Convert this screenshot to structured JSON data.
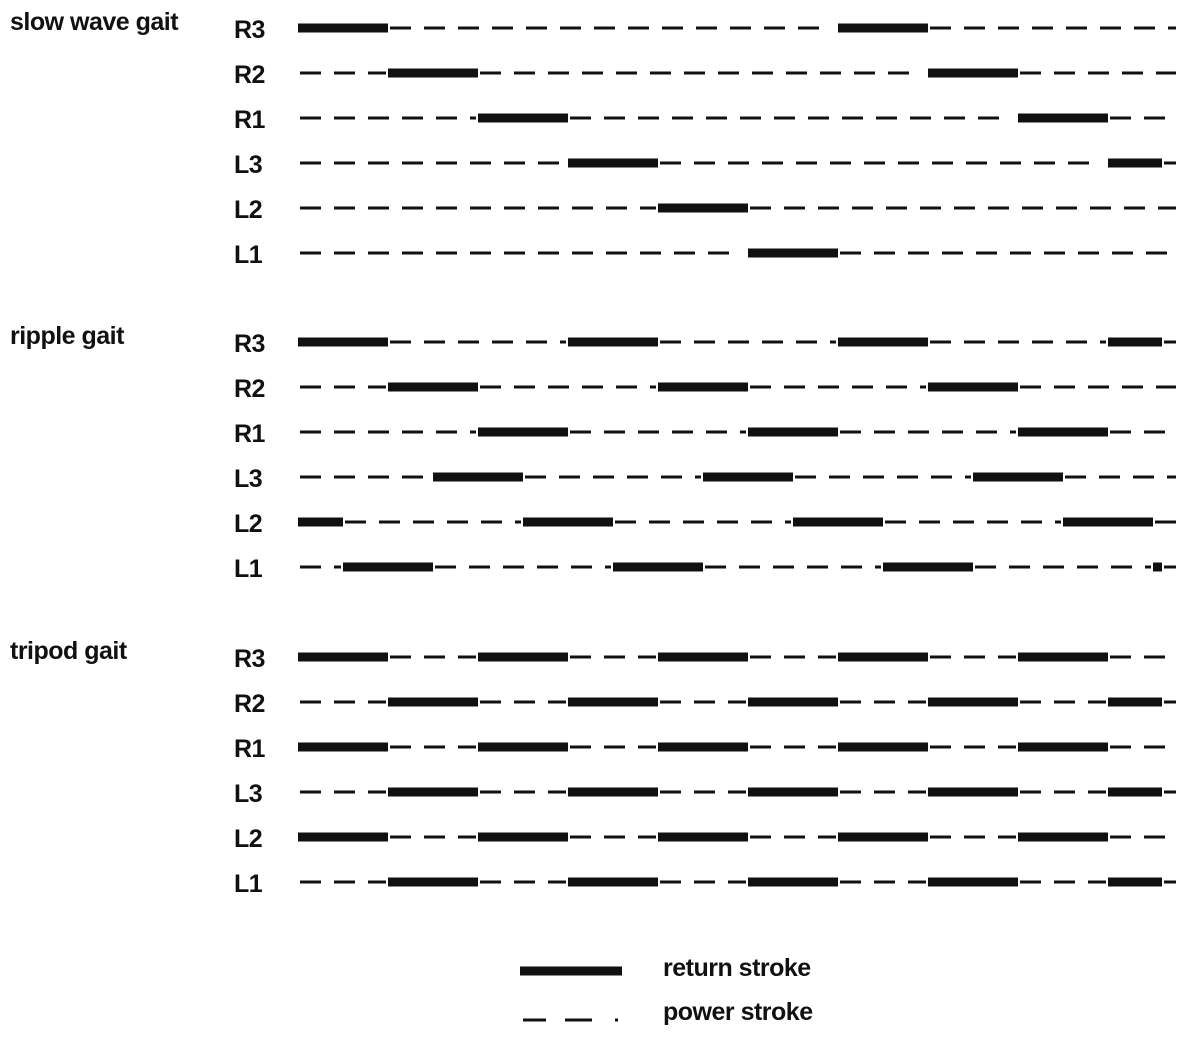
{
  "gaits": [
    {
      "title": "slow wave gait",
      "legs": [
        {
          "label": "R3",
          "return_strokes": [
            [
              0,
              1
            ]
          ]
        },
        {
          "label": "R2",
          "return_strokes": [
            [
              1,
              2
            ]
          ]
        },
        {
          "label": "R1",
          "return_strokes": [
            [
              2,
              3
            ]
          ]
        },
        {
          "label": "L3",
          "return_strokes": [
            [
              3,
              4
            ]
          ]
        },
        {
          "label": "L2",
          "return_strokes": [
            [
              4,
              5
            ]
          ]
        },
        {
          "label": "L1",
          "return_strokes": [
            [
              5,
              6
            ]
          ]
        }
      ],
      "period": 6
    },
    {
      "title": "ripple gait",
      "legs": [
        {
          "label": "R3",
          "return_strokes": [
            [
              0,
              1
            ]
          ]
        },
        {
          "label": "R2",
          "return_strokes": [
            [
              1,
              2
            ]
          ]
        },
        {
          "label": "R1",
          "return_strokes": [
            [
              2,
              3
            ]
          ]
        },
        {
          "label": "L3",
          "return_strokes": [
            [
              1.5,
              2.5
            ]
          ]
        },
        {
          "label": "L2",
          "return_strokes": [
            [
              2.5,
              3.5
            ]
          ]
        },
        {
          "label": "L1",
          "return_strokes": [
            [
              0.5,
              1.5
            ]
          ]
        }
      ],
      "period": 3
    },
    {
      "title": "tripod gait",
      "legs": [
        {
          "label": "R3",
          "return_strokes": [
            [
              0,
              1
            ]
          ]
        },
        {
          "label": "R2",
          "return_strokes": [
            [
              1,
              2
            ]
          ]
        },
        {
          "label": "R1",
          "return_strokes": [
            [
              0,
              1
            ]
          ]
        },
        {
          "label": "L3",
          "return_strokes": [
            [
              1,
              2
            ]
          ]
        },
        {
          "label": "L2",
          "return_strokes": [
            [
              0,
              1
            ]
          ]
        },
        {
          "label": "L1",
          "return_strokes": [
            [
              1,
              2
            ]
          ]
        }
      ],
      "period": 2
    }
  ],
  "time_span": 9.6,
  "legend": {
    "return_label": "return stroke",
    "power_label": "power stroke"
  },
  "colors": {
    "ink": "#111111",
    "background": "#ffffff"
  }
}
